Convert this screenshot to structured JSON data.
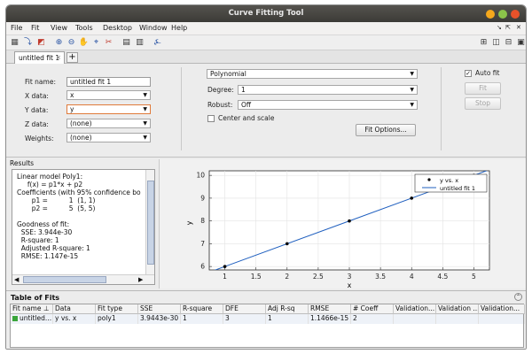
{
  "window": {
    "title": "Curve Fitting Tool"
  },
  "menu": {
    "items": [
      "File",
      "Fit",
      "View",
      "Tools",
      "Desktop",
      "Window",
      "Help"
    ]
  },
  "tab": {
    "label": "untitled fit 1",
    "close": "×",
    "add": "+"
  },
  "fit_panel": {
    "fit_name_label": "Fit name:",
    "fit_name_value": "untitled fit 1",
    "x_label": "X data:",
    "x_value": "x",
    "y_label": "Y data:",
    "y_value": "y",
    "z_label": "Z data:",
    "z_value": "(none)",
    "w_label": "Weights:",
    "w_value": "(none)",
    "fit_type": "Polynomial",
    "degree_label": "Degree:",
    "degree_value": "1",
    "robust_label": "Robust:",
    "robust_value": "Off",
    "center_label": "Center and scale",
    "fit_options_label": "Fit Options...",
    "auto_fit_label": "Auto fit",
    "fit_label": "Fit",
    "stop_label": "Stop"
  },
  "results": {
    "title": "Results",
    "lines": [
      "Linear model Poly1:",
      "     f(x) = p1*x + p2",
      "Coefficients (with 95% confidence bo",
      "       p1 =          1  (1, 1)",
      "       p2 =          5  (5, 5)",
      "",
      "Goodness of fit:",
      "  SSE: 3.944e-30",
      "  R-square: 1",
      "  Adjusted R-square: 1",
      "  RMSE: 1.147e-15"
    ]
  },
  "chart_data": {
    "type": "scatter",
    "xlabel": "x",
    "ylabel": "y",
    "xlim": [
      0.75,
      5.25
    ],
    "ylim": [
      5.85,
      10.2
    ],
    "xticks": [
      "1",
      "1.5",
      "2",
      "2.5",
      "3",
      "3.5",
      "4",
      "4.5",
      "5"
    ],
    "yticks": [
      "6",
      "7",
      "8",
      "9",
      "10"
    ],
    "series": [
      {
        "name": "y vs. x",
        "style": "points",
        "x": [
          1,
          2,
          3,
          4,
          5
        ],
        "y": [
          6,
          7,
          8,
          9,
          10
        ],
        "color": "#000000"
      },
      {
        "name": "untitled fit 1",
        "style": "line",
        "x": [
          0.75,
          5.25
        ],
        "y": [
          5.75,
          10.25
        ],
        "color": "#1f5fbf"
      }
    ],
    "legend_position": "top-right",
    "grid": true
  },
  "table": {
    "title": "Table of Fits",
    "headers": [
      "Fit name ⊥",
      "Data",
      "Fit type",
      "SSE",
      "R-square",
      "DFE",
      "Adj R-sq",
      "RMSE",
      "# Coeff",
      "Validation...",
      "Validation ...",
      "Validation..."
    ],
    "rows": [
      [
        "untitled...",
        "y vs. x",
        "poly1",
        "3.9443e-30",
        "1",
        "3",
        "1",
        "1.1466e-15",
        "2",
        "",
        "",
        ""
      ]
    ]
  }
}
